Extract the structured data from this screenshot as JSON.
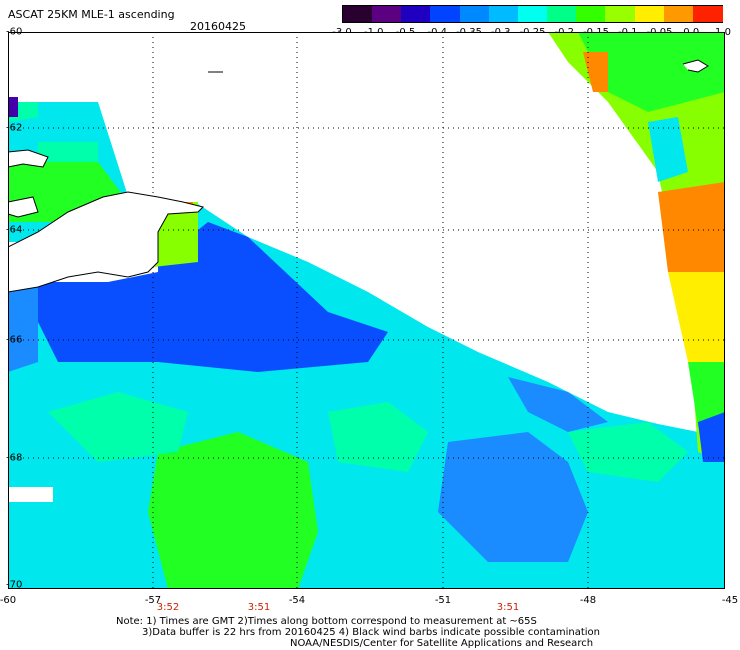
{
  "header": {
    "title": "ASCAT 25KM MLE-1 ascending",
    "date": "20160425"
  },
  "colorbar": {
    "labels": [
      "-3.0",
      "-1.0",
      "-0.5",
      "-0.4",
      "-0.35",
      "-0.3",
      "-0.25",
      "-0.2",
      "-0.15",
      "-0.1",
      "-0.05",
      "0.0",
      "1.0"
    ],
    "colors": [
      "#2a0030",
      "#5a0080",
      "#2000c0",
      "#0044ff",
      "#0088ff",
      "#00bbff",
      "#00ffee",
      "#00ff88",
      "#33ff00",
      "#99ff00",
      "#ffee00",
      "#ff9900",
      "#ff2200"
    ]
  },
  "axes": {
    "x_labels": [
      "-60",
      "-57",
      "-54",
      "-51",
      "-48",
      "-45"
    ],
    "y_labels": [
      "-60",
      "-62",
      "-64",
      "-66",
      "-68",
      "-70"
    ]
  },
  "times": [
    "3:52",
    "3:51",
    "3:51"
  ],
  "notes": [
    "Note: 1) Times are GMT 2)Times along bottom correspond to measurement at ~65S",
    "3)Data buffer is 22 hrs from 20160425 4) Black wind barbs indicate possible contamination",
    "NOAA/NESDIS/Center for Satellite Applications and Research"
  ],
  "map_colors": {
    "deep_blue": "#0a4fff",
    "mid_blue": "#1a8cff",
    "cyan": "#00e8ee",
    "teal": "#00ffaa",
    "green": "#22ff22",
    "lime": "#88ff00",
    "yellow": "#ffee00",
    "orange": "#ff8800",
    "purple": "#4400aa"
  }
}
